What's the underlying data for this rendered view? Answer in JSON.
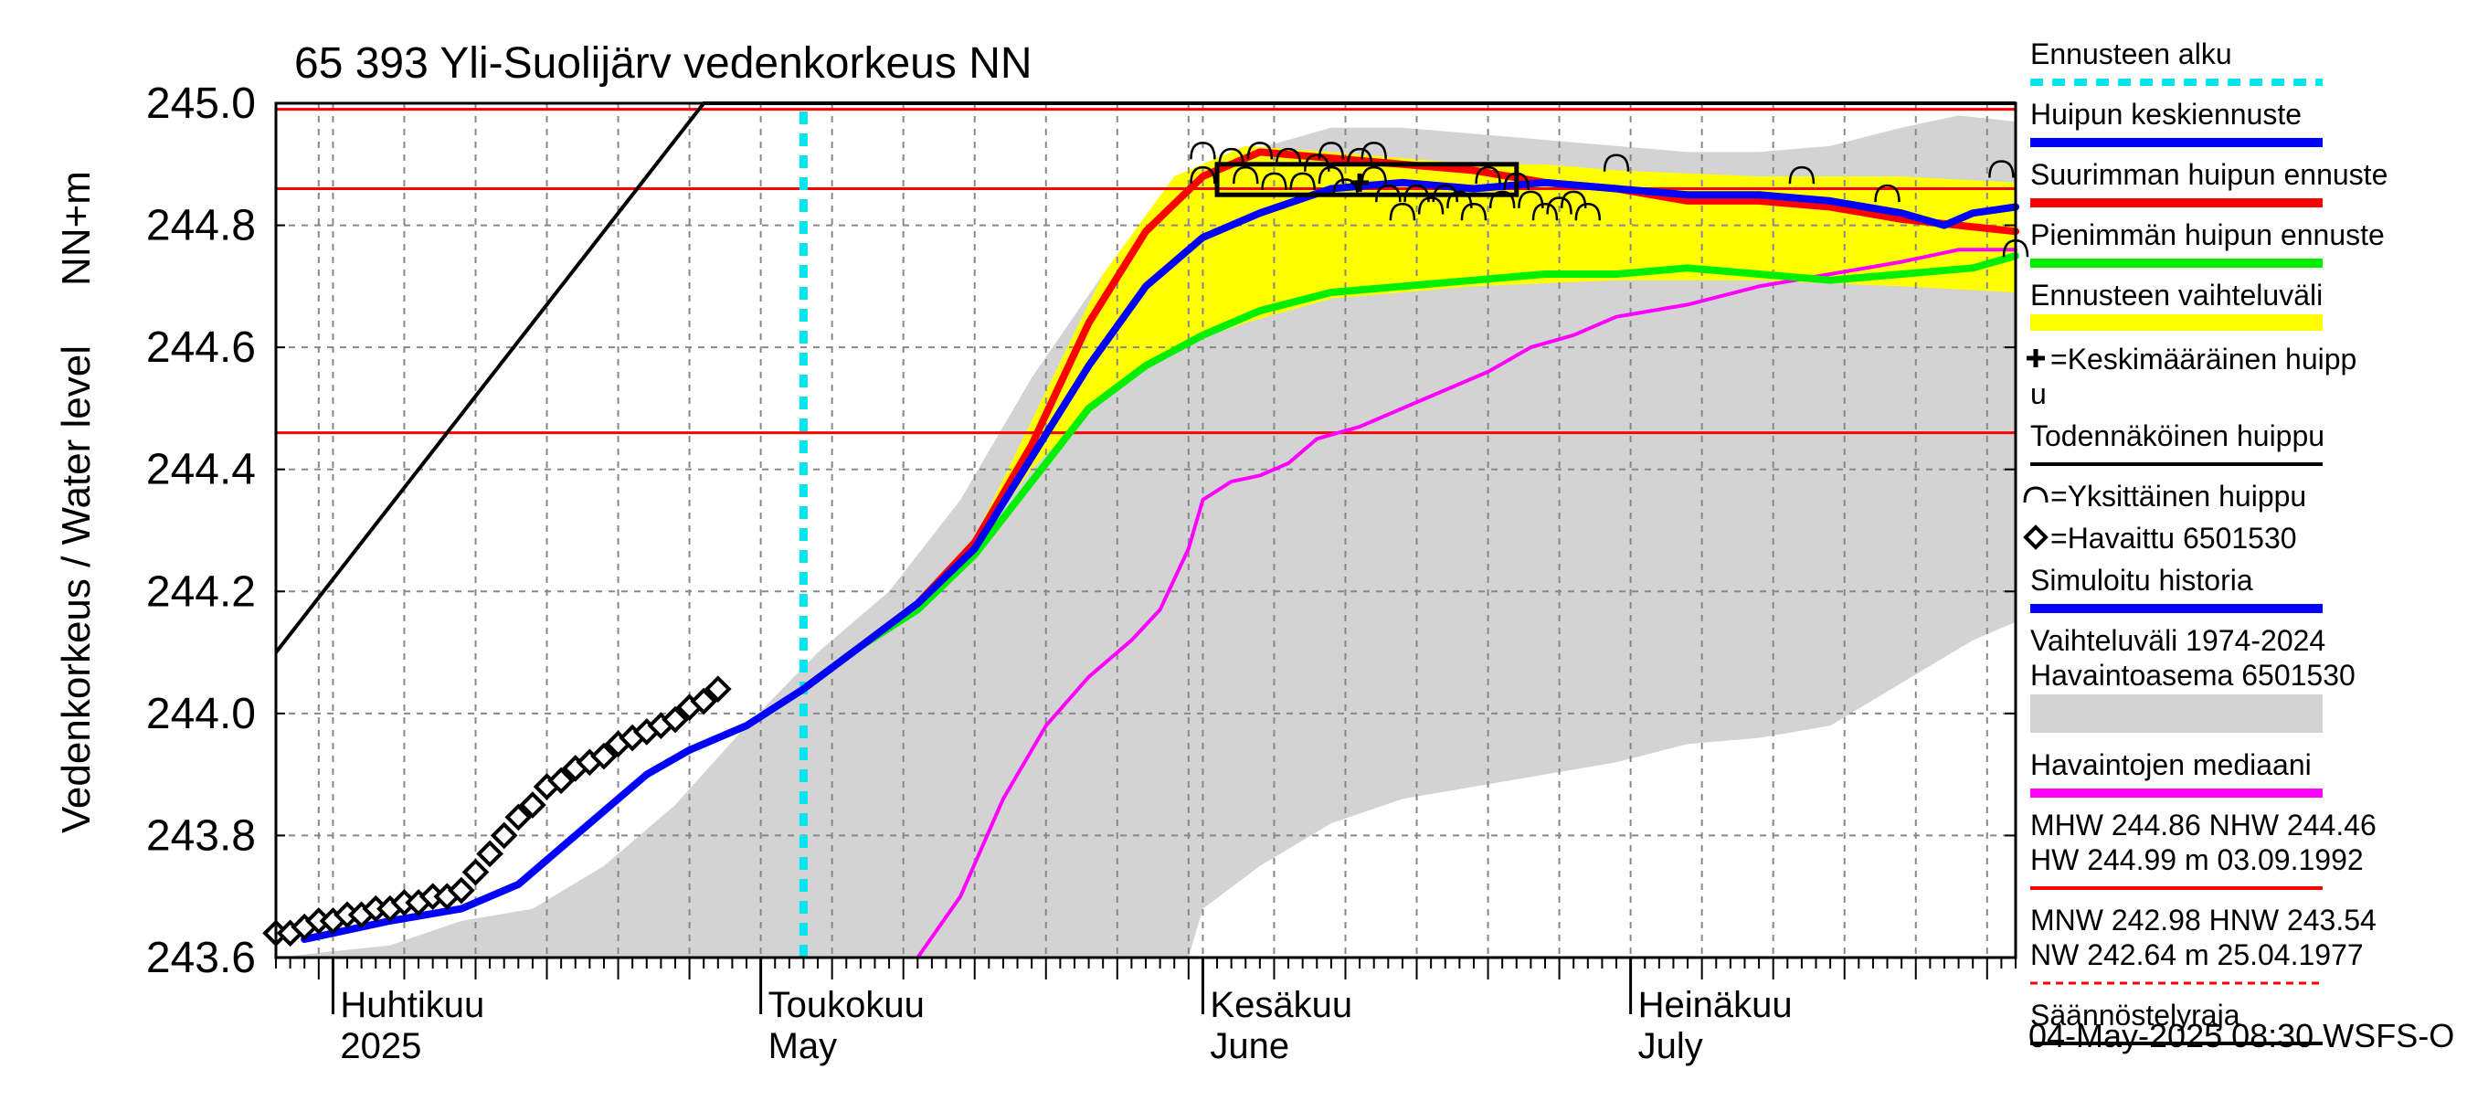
{
  "chart_data": {
    "type": "line",
    "title": "65 393 Yli-Suolijärv vedenkorkeus NN",
    "ylabel_main": "Vedenkorkeus / Water level",
    "ylabel_unit": "NN+m",
    "ylim": [
      243.6,
      245.0
    ],
    "y_ticks": [
      243.6,
      243.8,
      244.0,
      244.2,
      244.4,
      244.6,
      244.8,
      245.0
    ],
    "y_tick_labels": [
      "243.6",
      "243.8",
      "244.0",
      "244.2",
      "244.4",
      "244.6",
      "244.8",
      "245.0"
    ],
    "xlim": [
      "2025-03-28",
      "2025-07-28"
    ],
    "month_labels": [
      {
        "date": "2025-04-01",
        "fi": "Huhtikuu",
        "en": "2025"
      },
      {
        "date": "2025-05-01",
        "fi": "Toukokuu",
        "en": "May"
      },
      {
        "date": "2025-06-01",
        "fi": "Kesäkuu",
        "en": "June"
      },
      {
        "date": "2025-07-01",
        "fi": "Heinäkuu",
        "en": "July"
      }
    ],
    "forecast_start": "2025-05-04",
    "reference_lines": [
      {
        "name": "HW",
        "value": 244.99,
        "color": "#ff0000"
      },
      {
        "name": "MHW",
        "value": 244.86,
        "color": "#ff0000"
      },
      {
        "name": "NHW",
        "value": 244.46,
        "color": "#ff0000"
      }
    ],
    "regulation_line": {
      "points": [
        [
          "2025-03-28",
          244.1
        ],
        [
          "2025-04-27",
          245.0
        ],
        [
          "2025-07-28",
          245.0
        ]
      ]
    },
    "historical_range": {
      "name": "Vaihteluväli 1974-2024 Havaintoasema 6501530",
      "color": "#d3d3d3",
      "upper": [
        [
          "2025-03-28",
          243.6
        ],
        [
          "2025-04-05",
          243.62
        ],
        [
          "2025-04-10",
          243.66
        ],
        [
          "2025-04-15",
          243.68
        ],
        [
          "2025-04-20",
          243.75
        ],
        [
          "2025-04-25",
          243.85
        ],
        [
          "2025-04-30",
          243.98
        ],
        [
          "2025-05-05",
          244.1
        ],
        [
          "2025-05-10",
          244.2
        ],
        [
          "2025-05-15",
          244.35
        ],
        [
          "2025-05-20",
          244.55
        ],
        [
          "2025-05-25",
          244.72
        ],
        [
          "2025-05-30",
          244.85
        ],
        [
          "2025-06-04",
          244.92
        ],
        [
          "2025-06-10",
          244.96
        ],
        [
          "2025-06-15",
          244.96
        ],
        [
          "2025-06-20",
          244.95
        ],
        [
          "2025-06-25",
          244.94
        ],
        [
          "2025-06-30",
          244.93
        ],
        [
          "2025-07-05",
          244.92
        ],
        [
          "2025-07-10",
          244.92
        ],
        [
          "2025-07-15",
          244.93
        ],
        [
          "2025-07-20",
          244.96
        ],
        [
          "2025-07-24",
          244.98
        ],
        [
          "2025-07-28",
          244.97
        ]
      ],
      "lower": [
        [
          "2025-03-28",
          243.6
        ],
        [
          "2025-05-31",
          243.6
        ],
        [
          "2025-06-01",
          243.68
        ],
        [
          "2025-06-05",
          243.75
        ],
        [
          "2025-06-10",
          243.82
        ],
        [
          "2025-06-15",
          243.86
        ],
        [
          "2025-06-20",
          243.88
        ],
        [
          "2025-06-25",
          243.9
        ],
        [
          "2025-06-30",
          243.92
        ],
        [
          "2025-07-05",
          243.95
        ],
        [
          "2025-07-10",
          243.96
        ],
        [
          "2025-07-15",
          243.98
        ],
        [
          "2025-07-20",
          244.05
        ],
        [
          "2025-07-25",
          244.12
        ],
        [
          "2025-07-28",
          244.15
        ]
      ]
    },
    "forecast_range": {
      "name": "Ennusteen vaihteluväli",
      "color": "#ffff00",
      "upper": [
        [
          "2025-05-04",
          244.04
        ],
        [
          "2025-05-10",
          244.14
        ],
        [
          "2025-05-15",
          244.24
        ],
        [
          "2025-05-20",
          244.48
        ],
        [
          "2025-05-25",
          244.72
        ],
        [
          "2025-05-30",
          244.88
        ],
        [
          "2025-06-04",
          244.93
        ],
        [
          "2025-06-10",
          244.92
        ],
        [
          "2025-06-15",
          244.91
        ],
        [
          "2025-06-20",
          244.9
        ],
        [
          "2025-06-25",
          244.9
        ],
        [
          "2025-06-30",
          244.89
        ],
        [
          "2025-07-10",
          244.88
        ],
        [
          "2025-07-20",
          244.88
        ],
        [
          "2025-07-28",
          244.87
        ]
      ],
      "lower": [
        [
          "2025-05-04",
          244.04
        ],
        [
          "2025-05-10",
          244.14
        ],
        [
          "2025-05-15",
          244.24
        ],
        [
          "2025-05-20",
          244.4
        ],
        [
          "2025-05-25",
          244.52
        ],
        [
          "2025-05-30",
          244.6
        ],
        [
          "2025-06-04",
          244.64
        ],
        [
          "2025-06-10",
          244.68
        ],
        [
          "2025-06-20",
          244.7
        ],
        [
          "2025-06-30",
          244.71
        ],
        [
          "2025-07-10",
          244.71
        ],
        [
          "2025-07-20",
          244.7
        ],
        [
          "2025-07-28",
          244.69
        ]
      ]
    },
    "series": [
      {
        "name": "Havaintojen mediaani",
        "color": "#ff00ff",
        "width": 4,
        "points": [
          [
            "2025-05-12",
            243.6
          ],
          [
            "2025-05-15",
            243.7
          ],
          [
            "2025-05-18",
            243.86
          ],
          [
            "2025-05-21",
            243.98
          ],
          [
            "2025-05-24",
            244.06
          ],
          [
            "2025-05-27",
            244.12
          ],
          [
            "2025-05-29",
            244.17
          ],
          [
            "2025-05-31",
            244.27
          ],
          [
            "2025-06-01",
            244.35
          ],
          [
            "2025-06-03",
            244.38
          ],
          [
            "2025-06-05",
            244.39
          ],
          [
            "2025-06-07",
            244.41
          ],
          [
            "2025-06-09",
            244.45
          ],
          [
            "2025-06-12",
            244.47
          ],
          [
            "2025-06-15",
            244.5
          ],
          [
            "2025-06-18",
            244.53
          ],
          [
            "2025-06-21",
            244.56
          ],
          [
            "2025-06-24",
            244.6
          ],
          [
            "2025-06-27",
            244.62
          ],
          [
            "2025-06-30",
            244.65
          ],
          [
            "2025-07-05",
            244.67
          ],
          [
            "2025-07-10",
            244.7
          ],
          [
            "2025-07-15",
            244.72
          ],
          [
            "2025-07-20",
            244.74
          ],
          [
            "2025-07-24",
            244.76
          ],
          [
            "2025-07-28",
            244.76
          ]
        ]
      },
      {
        "name": "Ennusteen alku",
        "color": "#00e5ee",
        "width": 9,
        "dashed": true,
        "points": [
          [
            "2025-05-04",
            243.6
          ],
          [
            "2025-05-04",
            245.0
          ]
        ]
      },
      {
        "name": "Simuloitu historia",
        "color": "#0000ff",
        "width": 8,
        "points": [
          [
            "2025-03-30",
            243.63
          ],
          [
            "2025-04-05",
            243.66
          ],
          [
            "2025-04-10",
            243.68
          ],
          [
            "2025-04-14",
            243.72
          ],
          [
            "2025-04-17",
            243.78
          ],
          [
            "2025-04-20",
            243.84
          ],
          [
            "2025-04-23",
            243.9
          ],
          [
            "2025-04-26",
            243.94
          ],
          [
            "2025-04-30",
            243.98
          ],
          [
            "2025-05-04",
            244.04
          ]
        ]
      },
      {
        "name": "Suurimman huipun ennuste",
        "color": "#ff0000",
        "width": 8,
        "points": [
          [
            "2025-05-04",
            244.04
          ],
          [
            "2025-05-08",
            244.11
          ],
          [
            "2025-05-12",
            244.18
          ],
          [
            "2025-05-16",
            244.28
          ],
          [
            "2025-05-20",
            244.44
          ],
          [
            "2025-05-24",
            244.64
          ],
          [
            "2025-05-28",
            244.79
          ],
          [
            "2025-06-01",
            244.88
          ],
          [
            "2025-06-05",
            244.92
          ],
          [
            "2025-06-10",
            244.91
          ],
          [
            "2025-06-15",
            244.9
          ],
          [
            "2025-06-20",
            244.89
          ],
          [
            "2025-06-25",
            244.87
          ],
          [
            "2025-06-30",
            244.86
          ],
          [
            "2025-07-05",
            244.84
          ],
          [
            "2025-07-10",
            244.84
          ],
          [
            "2025-07-15",
            244.83
          ],
          [
            "2025-07-20",
            244.81
          ],
          [
            "2025-07-28",
            244.79
          ]
        ]
      },
      {
        "name": "Pienimmän huipun ennuste",
        "color": "#00ee00",
        "width": 8,
        "points": [
          [
            "2025-05-04",
            244.04
          ],
          [
            "2025-05-08",
            244.11
          ],
          [
            "2025-05-12",
            244.17
          ],
          [
            "2025-05-16",
            244.26
          ],
          [
            "2025-05-20",
            244.38
          ],
          [
            "2025-05-24",
            244.5
          ],
          [
            "2025-05-28",
            244.57
          ],
          [
            "2025-06-01",
            244.62
          ],
          [
            "2025-06-05",
            244.66
          ],
          [
            "2025-06-10",
            244.69
          ],
          [
            "2025-06-15",
            244.7
          ],
          [
            "2025-06-20",
            244.71
          ],
          [
            "2025-06-25",
            244.72
          ],
          [
            "2025-06-30",
            244.72
          ],
          [
            "2025-07-05",
            244.73
          ],
          [
            "2025-07-10",
            244.72
          ],
          [
            "2025-07-15",
            244.71
          ],
          [
            "2025-07-20",
            244.72
          ],
          [
            "2025-07-25",
            244.73
          ],
          [
            "2025-07-28",
            244.75
          ]
        ]
      },
      {
        "name": "Huipun keskiennuste",
        "color": "#0000ff",
        "width": 8,
        "points": [
          [
            "2025-05-04",
            244.04
          ],
          [
            "2025-05-08",
            244.11
          ],
          [
            "2025-05-12",
            244.18
          ],
          [
            "2025-05-16",
            244.27
          ],
          [
            "2025-05-20",
            244.42
          ],
          [
            "2025-05-24",
            244.57
          ],
          [
            "2025-05-28",
            244.7
          ],
          [
            "2025-06-01",
            244.78
          ],
          [
            "2025-06-05",
            244.82
          ],
          [
            "2025-06-10",
            244.86
          ],
          [
            "2025-06-15",
            244.87
          ],
          [
            "2025-06-20",
            244.86
          ],
          [
            "2025-06-25",
            244.87
          ],
          [
            "2025-06-30",
            244.86
          ],
          [
            "2025-07-05",
            244.85
          ],
          [
            "2025-07-10",
            244.85
          ],
          [
            "2025-07-15",
            244.84
          ],
          [
            "2025-07-20",
            244.82
          ],
          [
            "2025-07-23",
            244.8
          ],
          [
            "2025-07-25",
            244.82
          ],
          [
            "2025-07-28",
            244.83
          ]
        ]
      }
    ],
    "observed": {
      "name": "Havaittu 6501530",
      "points": [
        [
          "2025-03-28",
          243.64
        ],
        [
          "2025-03-29",
          243.64
        ],
        [
          "2025-03-30",
          243.65
        ],
        [
          "2025-03-31",
          243.66
        ],
        [
          "2025-04-01",
          243.66
        ],
        [
          "2025-04-02",
          243.67
        ],
        [
          "2025-04-03",
          243.67
        ],
        [
          "2025-04-04",
          243.68
        ],
        [
          "2025-04-05",
          243.68
        ],
        [
          "2025-04-06",
          243.69
        ],
        [
          "2025-04-07",
          243.69
        ],
        [
          "2025-04-08",
          243.7
        ],
        [
          "2025-04-09",
          243.7
        ],
        [
          "2025-04-10",
          243.71
        ],
        [
          "2025-04-11",
          243.74
        ],
        [
          "2025-04-12",
          243.77
        ],
        [
          "2025-04-13",
          243.8
        ],
        [
          "2025-04-14",
          243.83
        ],
        [
          "2025-04-15",
          243.85
        ],
        [
          "2025-04-16",
          243.88
        ],
        [
          "2025-04-17",
          243.89
        ],
        [
          "2025-04-18",
          243.91
        ],
        [
          "2025-04-19",
          243.92
        ],
        [
          "2025-04-20",
          243.93
        ],
        [
          "2025-04-21",
          243.95
        ],
        [
          "2025-04-22",
          243.96
        ],
        [
          "2025-04-23",
          243.97
        ],
        [
          "2025-04-24",
          243.98
        ],
        [
          "2025-04-25",
          243.99
        ],
        [
          "2025-04-26",
          244.01
        ],
        [
          "2025-04-27",
          244.02
        ],
        [
          "2025-04-28",
          244.04
        ]
      ]
    },
    "probable_peak": {
      "name": "Todennäköinen huippu",
      "x": [
        "2025-06-02",
        "2025-06-23"
      ],
      "y": [
        244.85,
        244.9
      ]
    },
    "average_peak": {
      "name": "Keskimääräinen huippu",
      "date": "2025-06-12",
      "value": 244.87
    },
    "individual_peaks": [
      [
        "2025-06-01",
        244.88
      ],
      [
        "2025-06-01",
        244.92
      ],
      [
        "2025-06-03",
        244.91
      ],
      [
        "2025-06-05",
        244.92
      ],
      [
        "2025-06-07",
        244.91
      ],
      [
        "2025-06-04",
        244.88
      ],
      [
        "2025-06-06",
        244.87
      ],
      [
        "2025-06-08",
        244.87
      ],
      [
        "2025-06-09",
        244.9
      ],
      [
        "2025-06-10",
        244.92
      ],
      [
        "2025-06-10",
        244.88
      ],
      [
        "2025-06-11",
        244.86
      ],
      [
        "2025-06-12",
        244.91
      ],
      [
        "2025-06-13",
        244.92
      ],
      [
        "2025-06-13",
        244.88
      ],
      [
        "2025-06-14",
        244.85
      ],
      [
        "2025-06-15",
        244.82
      ],
      [
        "2025-06-16",
        244.85
      ],
      [
        "2025-06-17",
        244.83
      ],
      [
        "2025-06-18",
        244.85
      ],
      [
        "2025-06-19",
        244.84
      ],
      [
        "2025-06-20",
        244.82
      ],
      [
        "2025-06-21",
        244.88
      ],
      [
        "2025-06-22",
        244.84
      ],
      [
        "2025-06-23",
        244.87
      ],
      [
        "2025-06-24",
        244.84
      ],
      [
        "2025-06-25",
        244.82
      ],
      [
        "2025-06-26",
        244.83
      ],
      [
        "2025-06-27",
        244.84
      ],
      [
        "2025-06-28",
        244.82
      ],
      [
        "2025-06-30",
        244.9
      ],
      [
        "2025-07-13",
        244.88
      ],
      [
        "2025-07-19",
        244.85
      ],
      [
        "2025-07-27",
        244.89
      ],
      [
        "2025-07-28",
        244.76
      ]
    ],
    "legend": [
      {
        "label": "Ennusteen alku",
        "type": "dash",
        "color": "#00e5ee"
      },
      {
        "label": "Huipun keskiennuste",
        "type": "line",
        "color": "#0000ff"
      },
      {
        "label": "Suurimman huipun ennuste",
        "type": "line",
        "color": "#ff0000"
      },
      {
        "label": "Pienimmän huipun ennuste",
        "type": "line",
        "color": "#00ee00"
      },
      {
        "label": "Ennusteen vaihteluväli",
        "type": "band",
        "color": "#ffff00"
      },
      {
        "label": "=Keskimääräinen huipp",
        "label2": "u",
        "type": "plus"
      },
      {
        "label": "Todennäköinen huippu",
        "type": "line",
        "color": "#000000"
      },
      {
        "label": "=Yksittäinen huippu",
        "type": "arc"
      },
      {
        "label": "=Havaittu 6501530",
        "type": "diamond"
      },
      {
        "label": "Simuloitu historia",
        "type": "line",
        "color": "#0000ff"
      },
      {
        "label": "Vaihteluväli 1974-2024",
        "label2": " Havaintoasema 6501530",
        "type": "band",
        "color": "#d3d3d3"
      },
      {
        "label": "Havaintojen mediaani",
        "type": "line",
        "color": "#ff00ff"
      },
      {
        "label": "MHW 244.86 NHW 244.46",
        "label2": "HW 244.99 m 03.09.1992",
        "type": "line",
        "color": "#ff0000"
      },
      {
        "label": "MNW 242.98 HNW 243.54",
        "label2": "NW 242.64 m 25.04.1977",
        "type": "dotted",
        "color": "#ff0000"
      },
      {
        "label": "Säännöstelyraja",
        "type": "line",
        "color": "#000000"
      }
    ],
    "footer": "04-May-2025 08:30 WSFS-O"
  }
}
